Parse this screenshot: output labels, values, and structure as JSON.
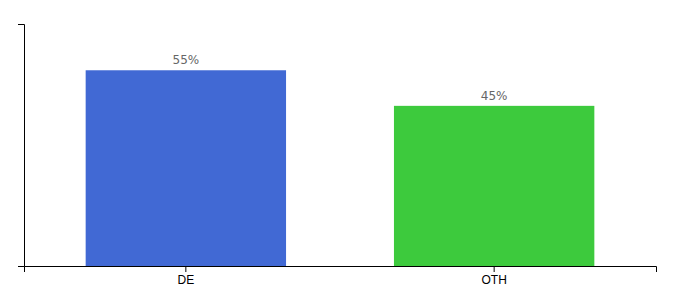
{
  "chart_data": {
    "type": "bar",
    "categories": [
      "DE",
      "OTH"
    ],
    "values": [
      55,
      45
    ],
    "colors": [
      "#4169d4",
      "#3dca3d"
    ],
    "value_labels": [
      "55%",
      "45%"
    ],
    "data_labels": true,
    "ylim": [
      0,
      68
    ],
    "tick_labels": "x",
    "grid": false
  }
}
